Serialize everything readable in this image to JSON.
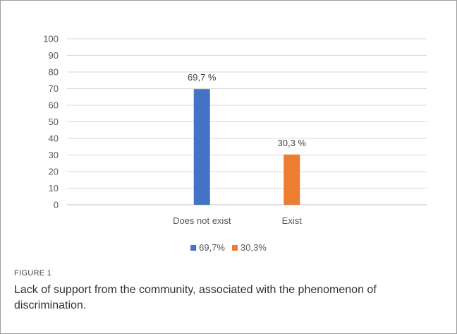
{
  "chart_data": {
    "type": "bar",
    "categories": [
      "Does not exist",
      "Exist"
    ],
    "values": [
      69.7,
      30.3
    ],
    "data_labels": [
      "69,7 %",
      "30,3 %"
    ],
    "colors": [
      "#4472C4",
      "#ED7D31"
    ],
    "ylim": [
      0,
      100
    ],
    "yticks": [
      0,
      10,
      20,
      30,
      40,
      50,
      60,
      70,
      80,
      90,
      100
    ],
    "grid": true,
    "legend": {
      "position": "bottom",
      "entries": [
        {
          "label": "69,7%",
          "color": "#4472C4"
        },
        {
          "label": "30,3%",
          "color": "#ED7D31"
        }
      ]
    }
  },
  "figure": {
    "label": "FIGURE 1",
    "caption": "Lack of support from the community, associated with the phenomenon of discrimination."
  }
}
